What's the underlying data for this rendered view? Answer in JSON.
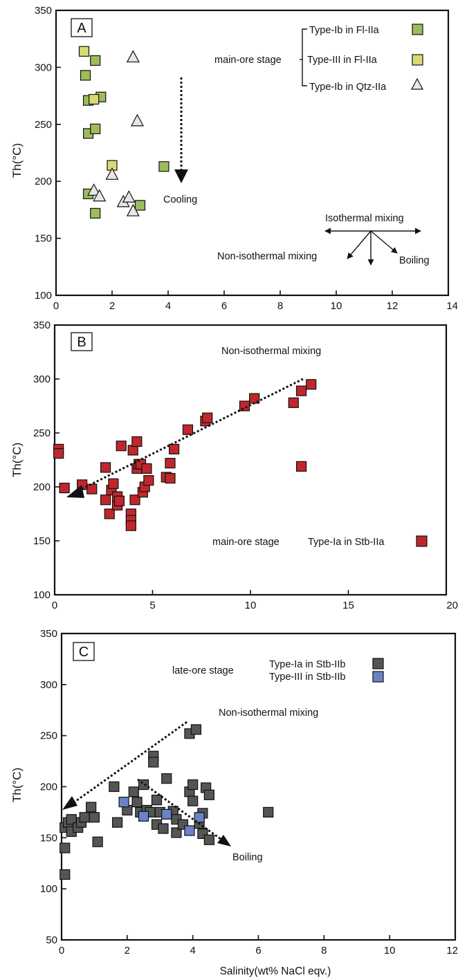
{
  "chart_data": [
    {
      "type": "scatter",
      "panel_label": "A",
      "xlim": [
        0,
        14
      ],
      "ylim": [
        100,
        350
      ],
      "x_ticks": [
        0,
        2,
        4,
        6,
        8,
        10,
        12,
        14
      ],
      "y_ticks": [
        100,
        150,
        200,
        250,
        300,
        350
      ],
      "xlabel": "",
      "ylabel": "Th(°C)",
      "legend_group": "main-ore stage",
      "series": [
        {
          "name": "Type-Ib in Fl-IIa",
          "marker": "square",
          "color": "#9dbc5b",
          "x": [
            1.05,
            1.4,
            1.15,
            1.6,
            1.15,
            1.4,
            1.15,
            1.4,
            3.0,
            3.85
          ],
          "y": [
            293,
            306,
            271,
            274,
            242,
            246,
            189,
            172,
            179,
            213
          ]
        },
        {
          "name": "Type-III in Fl-IIa",
          "marker": "square",
          "color": "#d9db72",
          "x": [
            1.0,
            1.35,
            2.0
          ],
          "y": [
            314,
            272,
            214
          ]
        },
        {
          "name": "Type-Ib in Qtz-IIa",
          "marker": "triangle",
          "color": "#e6e6e6",
          "x": [
            2.75,
            2.9,
            2.0,
            1.35,
            1.55,
            2.4,
            2.6,
            2.75
          ],
          "y": [
            309,
            253,
            206,
            192,
            187,
            182,
            186,
            174
          ]
        }
      ],
      "annotations": [
        "Cooling",
        "Isothermal mixing",
        "Non-isothermal mixing",
        "Boiling"
      ]
    },
    {
      "type": "scatter",
      "panel_label": "B",
      "xlim": [
        0,
        20
      ],
      "ylim": [
        100,
        350
      ],
      "x_ticks": [
        0,
        5,
        10,
        15,
        20
      ],
      "y_ticks": [
        100,
        150,
        200,
        250,
        300,
        350
      ],
      "xlabel": "",
      "ylabel": "Th(°C)",
      "legend_group": "main-ore stage",
      "series": [
        {
          "name": "Type-Ia in Stb-IIa",
          "marker": "square",
          "color": "#c0272d",
          "x": [
            0.2,
            0.2,
            0.5,
            1.4,
            1.9,
            2.6,
            2.6,
            2.8,
            2.9,
            3.0,
            3.2,
            3.2,
            3.3,
            3.4,
            3.9,
            3.9,
            3.9,
            4.0,
            4.1,
            4.2,
            4.2,
            4.3,
            4.4,
            4.5,
            4.6,
            4.7,
            4.8,
            5.7,
            5.9,
            5.9,
            6.1,
            6.8,
            7.7,
            7.8,
            9.7,
            10.2,
            12.2,
            12.6,
            12.6,
            13.1
          ],
          "y": [
            235,
            231,
            199,
            202,
            198,
            218,
            188,
            175,
            197,
            203,
            183,
            191,
            187,
            238,
            175,
            169,
            164,
            234,
            188,
            217,
            242,
            221,
            221,
            195,
            200,
            217,
            206,
            209,
            208,
            222,
            235,
            253,
            261,
            264,
            275,
            282,
            278,
            289,
            219,
            295
          ]
        }
      ],
      "annotations": [
        "Non-isothermal mixing"
      ]
    },
    {
      "type": "scatter",
      "panel_label": "C",
      "xlim": [
        0,
        12
      ],
      "ylim": [
        50,
        350
      ],
      "x_ticks": [
        0,
        2,
        4,
        6,
        8,
        10,
        12
      ],
      "y_ticks": [
        50,
        100,
        150,
        200,
        250,
        300,
        350
      ],
      "xlabel": "Salinity(wt% NaCl eqv.)",
      "ylabel": "Th(°C)",
      "legend_group": "late-ore stage",
      "series": [
        {
          "name": "Type-Ia in Stb-IIb",
          "marker": "square",
          "color": "#555555",
          "x": [
            0.1,
            0.1,
            0.1,
            0.2,
            0.3,
            0.3,
            0.5,
            0.6,
            0.7,
            0.9,
            1.0,
            1.1,
            1.6,
            1.7,
            2.0,
            2.2,
            2.3,
            2.4,
            2.5,
            2.6,
            2.7,
            2.8,
            2.8,
            2.9,
            2.9,
            3.0,
            3.1,
            3.2,
            3.4,
            3.5,
            3.5,
            3.7,
            3.9,
            3.9,
            4.0,
            4.0,
            4.1,
            4.2,
            4.3,
            4.3,
            4.4,
            4.5,
            4.5,
            6.3
          ],
          "y": [
            114,
            140,
            160,
            165,
            156,
            168,
            160,
            165,
            170,
            180,
            170,
            146,
            200,
            165,
            177,
            195,
            185,
            175,
            202,
            177,
            175,
            230,
            224,
            187,
            163,
            175,
            159,
            208,
            176,
            155,
            168,
            163,
            195,
            252,
            202,
            186,
            256,
            164,
            174,
            154,
            199,
            192,
            148,
            175
          ]
        },
        {
          "name": "Type-III in Stb-IIb",
          "marker": "square",
          "color": "#6b82c8",
          "x": [
            1.9,
            2.5,
            3.2,
            3.9,
            4.2
          ],
          "y": [
            185,
            171,
            173,
            157,
            170
          ]
        }
      ],
      "annotations": [
        "Non-isothermal mixing",
        "Boiling"
      ]
    }
  ]
}
